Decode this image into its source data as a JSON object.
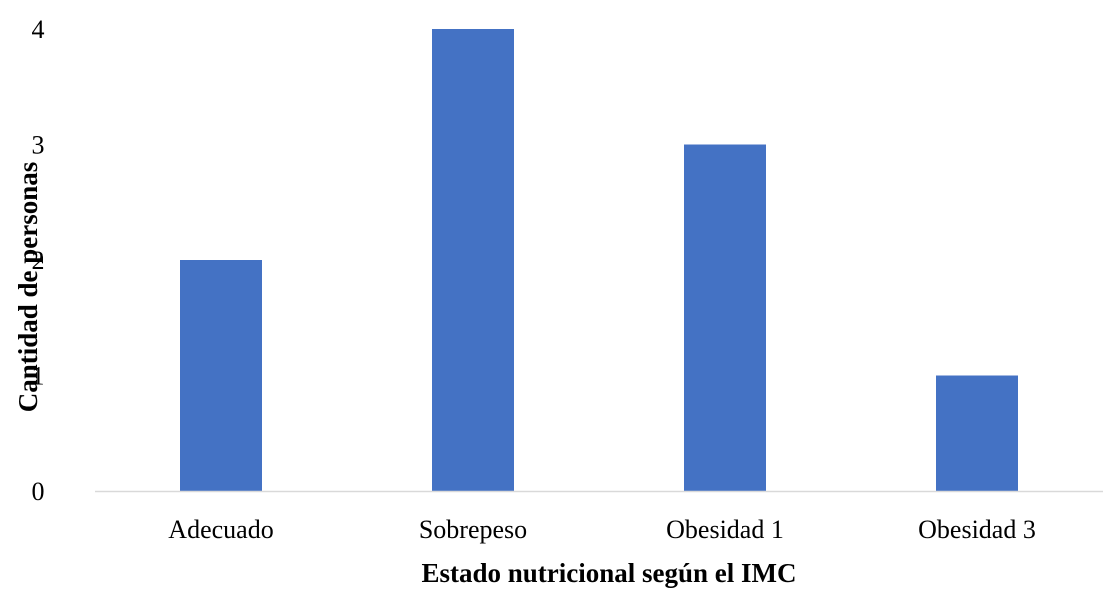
{
  "chart_data": {
    "type": "bar",
    "categories": [
      "Adecuado",
      "Sobrepeso",
      "Obesidad 1",
      "Obesidad 3"
    ],
    "values": [
      2,
      4,
      3,
      1
    ],
    "xlabel": "Estado nutricional según el IMC",
    "ylabel": "Cantidad de personas",
    "ylim": [
      0,
      4
    ],
    "yticks": [
      "0",
      "1",
      "2",
      "3",
      "4"
    ],
    "grid": false,
    "legend": "none",
    "bar_color": "#4472C4",
    "axis_color": "#D9D9D9"
  }
}
